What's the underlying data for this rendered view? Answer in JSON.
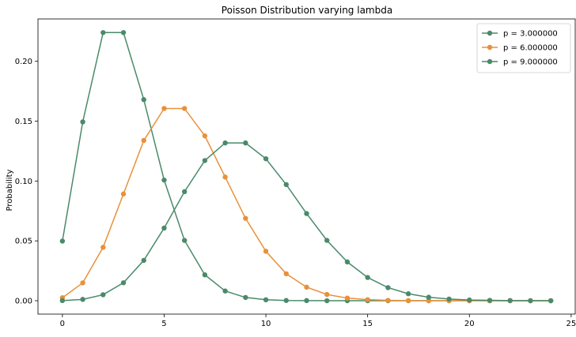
{
  "chart_data": {
    "type": "line",
    "title": "Poisson Distribution varying lambda",
    "xlabel": "",
    "ylabel": "Probability",
    "xlim": [
      -1.2,
      25.2
    ],
    "ylim": [
      -0.0112,
      0.2354
    ],
    "xticks": [
      0,
      5,
      10,
      15,
      20,
      25
    ],
    "yticks": [
      0.0,
      0.05,
      0.1,
      0.15,
      0.2
    ],
    "ytick_labels": [
      "0.00",
      "0.05",
      "0.10",
      "0.15",
      "0.20"
    ],
    "grid": false,
    "legend_position": "top-right",
    "x": [
      0,
      1,
      2,
      3,
      4,
      5,
      6,
      7,
      8,
      9,
      10,
      11,
      12,
      13,
      14,
      15,
      16,
      17,
      18,
      19,
      20,
      21,
      22,
      23,
      24
    ],
    "series": [
      {
        "name": "p = 3.000000",
        "color": "#4a8a6a",
        "marker": "circle",
        "values": [
          0.0498,
          0.1494,
          0.224,
          0.224,
          0.168,
          0.1008,
          0.0504,
          0.0216,
          0.0081,
          0.0027,
          0.0008,
          0.0002,
          0.0001,
          0.0,
          0.0,
          0.0,
          0.0,
          0.0,
          0.0,
          0.0,
          0.0,
          0.0,
          0.0,
          0.0,
          0.0
        ]
      },
      {
        "name": "p = 6.000000",
        "color": "#e8913a",
        "marker": "circle",
        "values": [
          0.0025,
          0.0149,
          0.0446,
          0.0892,
          0.1339,
          0.1606,
          0.1606,
          0.1377,
          0.1033,
          0.0688,
          0.0413,
          0.0225,
          0.0113,
          0.0052,
          0.0022,
          0.0009,
          0.0003,
          0.0001,
          0.0,
          0.0,
          0.0,
          0.0,
          0.0,
          0.0,
          0.0
        ]
      },
      {
        "name": "p = 9.000000",
        "color": "#4a8a6a",
        "marker": "circle",
        "values": [
          0.0001,
          0.0011,
          0.005,
          0.015,
          0.0337,
          0.0607,
          0.0911,
          0.1171,
          0.1318,
          0.1318,
          0.1186,
          0.097,
          0.0728,
          0.0504,
          0.0324,
          0.0194,
          0.0109,
          0.0058,
          0.0029,
          0.0014,
          0.0006,
          0.0003,
          0.0001,
          0.0,
          0.0
        ]
      }
    ]
  }
}
